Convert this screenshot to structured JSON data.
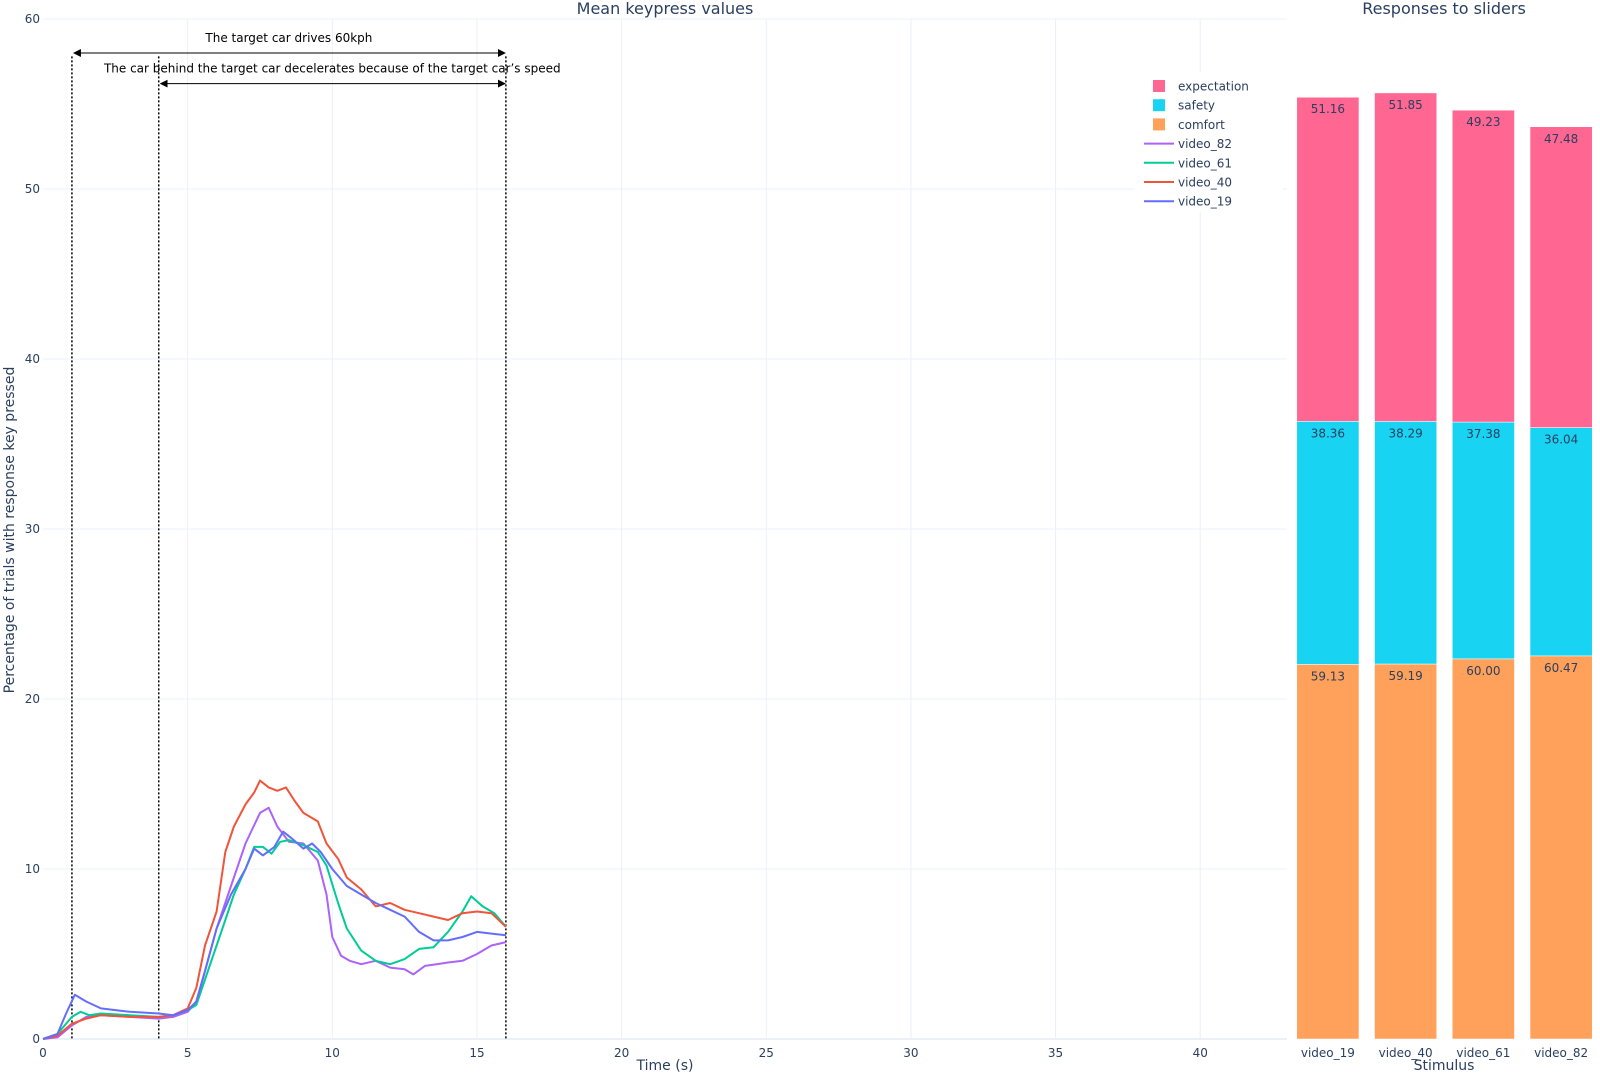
{
  "chart_data": [
    {
      "type": "line",
      "title": "Mean keypress values",
      "xlabel": "Time (s)",
      "ylabel": "Percentage of trials with response key pressed",
      "xlim": [
        0,
        43
      ],
      "ylim": [
        0,
        60
      ],
      "x_ticks": [
        "0",
        "5",
        "10",
        "15",
        "20",
        "25",
        "30",
        "35",
        "40"
      ],
      "y_ticks": [
        "0",
        "10",
        "20",
        "30",
        "40",
        "50",
        "60"
      ],
      "grid": true,
      "series": [
        {
          "name": "video_82",
          "color": "#ab63fa",
          "points": [
            [
              0,
              0
            ],
            [
              0.5,
              0.1
            ],
            [
              1,
              0.8
            ],
            [
              1.5,
              1.3
            ],
            [
              2,
              1.4
            ],
            [
              3,
              1.3
            ],
            [
              4,
              1.2
            ],
            [
              4.5,
              1.3
            ],
            [
              5,
              1.6
            ],
            [
              5.3,
              2.2
            ],
            [
              5.6,
              4
            ],
            [
              6,
              6.5
            ],
            [
              6.5,
              9
            ],
            [
              7,
              11.5
            ],
            [
              7.5,
              13.3
            ],
            [
              7.8,
              13.6
            ],
            [
              8.1,
              12.5
            ],
            [
              8.5,
              11.6
            ],
            [
              9,
              11.5
            ],
            [
              9.5,
              10.5
            ],
            [
              9.8,
              8.5
            ],
            [
              10,
              6
            ],
            [
              10.3,
              4.9
            ],
            [
              10.6,
              4.6
            ],
            [
              11,
              4.4
            ],
            [
              11.5,
              4.6
            ],
            [
              12,
              4.2
            ],
            [
              12.5,
              4.1
            ],
            [
              12.8,
              3.8
            ],
            [
              13.2,
              4.3
            ],
            [
              13.6,
              4.4
            ],
            [
              14,
              4.5
            ],
            [
              14.5,
              4.6
            ],
            [
              15,
              5.0
            ],
            [
              15.5,
              5.5
            ],
            [
              16,
              5.7
            ]
          ]
        },
        {
          "name": "video_61",
          "color": "#00cc96",
          "points": [
            [
              0,
              0
            ],
            [
              0.5,
              0.3
            ],
            [
              1,
              1.3
            ],
            [
              1.3,
              1.6
            ],
            [
              1.6,
              1.4
            ],
            [
              2,
              1.5
            ],
            [
              3,
              1.4
            ],
            [
              4,
              1.3
            ],
            [
              4.5,
              1.4
            ],
            [
              5,
              1.7
            ],
            [
              5.3,
              2.0
            ],
            [
              5.6,
              3.5
            ],
            [
              6,
              5.5
            ],
            [
              6.3,
              7
            ],
            [
              6.6,
              8.5
            ],
            [
              7,
              10
            ],
            [
              7.3,
              11.3
            ],
            [
              7.6,
              11.3
            ],
            [
              7.9,
              10.9
            ],
            [
              8.2,
              11.6
            ],
            [
              8.5,
              11.7
            ],
            [
              9,
              11.4
            ],
            [
              9.5,
              11
            ],
            [
              9.8,
              10.2
            ],
            [
              10.2,
              8
            ],
            [
              10.5,
              6.5
            ],
            [
              11,
              5.2
            ],
            [
              11.5,
              4.6
            ],
            [
              12,
              4.4
            ],
            [
              12.5,
              4.7
            ],
            [
              13,
              5.3
            ],
            [
              13.5,
              5.4
            ],
            [
              14,
              6.3
            ],
            [
              14.5,
              7.5
            ],
            [
              14.8,
              8.4
            ],
            [
              15.2,
              7.8
            ],
            [
              15.6,
              7.4
            ],
            [
              16,
              6.6
            ]
          ]
        },
        {
          "name": "video_40",
          "color": "#ef553b",
          "points": [
            [
              0,
              0
            ],
            [
              0.5,
              0.2
            ],
            [
              1,
              0.9
            ],
            [
              1.5,
              1.2
            ],
            [
              2,
              1.4
            ],
            [
              3,
              1.3
            ],
            [
              4,
              1.3
            ],
            [
              4.5,
              1.4
            ],
            [
              5,
              1.8
            ],
            [
              5.3,
              3
            ],
            [
              5.6,
              5.5
            ],
            [
              6,
              7.5
            ],
            [
              6.3,
              11
            ],
            [
              6.6,
              12.5
            ],
            [
              7,
              13.8
            ],
            [
              7.3,
              14.5
            ],
            [
              7.5,
              15.2
            ],
            [
              7.8,
              14.8
            ],
            [
              8.1,
              14.6
            ],
            [
              8.4,
              14.8
            ],
            [
              8.7,
              14.0
            ],
            [
              9,
              13.3
            ],
            [
              9.5,
              12.8
            ],
            [
              9.8,
              11.5
            ],
            [
              10.2,
              10.6
            ],
            [
              10.5,
              9.5
            ],
            [
              11,
              8.8
            ],
            [
              11.5,
              7.8
            ],
            [
              12,
              8.0
            ],
            [
              12.5,
              7.6
            ],
            [
              13,
              7.4
            ],
            [
              13.5,
              7.2
            ],
            [
              14,
              7.0
            ],
            [
              14.5,
              7.4
            ],
            [
              15,
              7.5
            ],
            [
              15.5,
              7.4
            ],
            [
              16,
              6.6
            ]
          ]
        },
        {
          "name": "video_19",
          "color": "#636efa",
          "points": [
            [
              0,
              0
            ],
            [
              0.5,
              0.3
            ],
            [
              0.8,
              1.5
            ],
            [
              1.1,
              2.6
            ],
            [
              1.5,
              2.2
            ],
            [
              2,
              1.8
            ],
            [
              3,
              1.6
            ],
            [
              4,
              1.5
            ],
            [
              4.5,
              1.4
            ],
            [
              5,
              1.7
            ],
            [
              5.3,
              2.2
            ],
            [
              5.6,
              4
            ],
            [
              6,
              6.5
            ],
            [
              6.5,
              8.5
            ],
            [
              7,
              10
            ],
            [
              7.3,
              11.2
            ],
            [
              7.6,
              10.8
            ],
            [
              8,
              11.3
            ],
            [
              8.3,
              12.2
            ],
            [
              8.6,
              11.8
            ],
            [
              9,
              11.2
            ],
            [
              9.3,
              11.5
            ],
            [
              9.6,
              11.0
            ],
            [
              10,
              10
            ],
            [
              10.5,
              9
            ],
            [
              11,
              8.5
            ],
            [
              11.5,
              8.0
            ],
            [
              12,
              7.6
            ],
            [
              12.5,
              7.2
            ],
            [
              13,
              6.3
            ],
            [
              13.5,
              5.8
            ],
            [
              14,
              5.8
            ],
            [
              14.5,
              6.0
            ],
            [
              15,
              6.3
            ],
            [
              15.5,
              6.2
            ],
            [
              16,
              6.1
            ]
          ]
        }
      ],
      "annotations": [
        {
          "text": "The target car drives 60kph",
          "x_start": 1,
          "x_end": 16,
          "y": 58
        },
        {
          "text": "The car behind the target car decelerates because of the target car’s speed",
          "x_start": 4,
          "x_end": 16,
          "y": 56.2
        }
      ],
      "vertical_lines": [
        1,
        4,
        16
      ]
    },
    {
      "type": "bar",
      "stacked": true,
      "title": "Responses to sliders",
      "xlabel": "Stimulus",
      "categories": [
        "video_19",
        "video_40",
        "video_61",
        "video_82"
      ],
      "series": [
        {
          "name": "comfort",
          "color": "#ffa15a",
          "values": [
            59.13,
            59.19,
            60.0,
            60.47
          ],
          "labels": [
            "59.13",
            "59.19",
            "60.00",
            "60.47"
          ]
        },
        {
          "name": "safety",
          "color": "#19d3f3",
          "values": [
            38.36,
            38.29,
            37.38,
            36.04
          ],
          "labels": [
            "38.36",
            "38.29",
            "37.38",
            "36.04"
          ]
        },
        {
          "name": "expectation",
          "color": "#ff6692",
          "values": [
            51.16,
            51.85,
            49.23,
            47.48
          ],
          "labels": [
            "51.16",
            "51.85",
            "49.23",
            "47.48"
          ]
        }
      ],
      "ylim": [
        0,
        161
      ]
    }
  ],
  "legend": {
    "placement": "top-right",
    "items": [
      {
        "label": "expectation",
        "kind": "square",
        "color": "#ff6692"
      },
      {
        "label": "safety",
        "kind": "square",
        "color": "#19d3f3"
      },
      {
        "label": "comfort",
        "kind": "square",
        "color": "#ffa15a"
      },
      {
        "label": "video_82",
        "kind": "line",
        "color": "#ab63fa"
      },
      {
        "label": "video_61",
        "kind": "line",
        "color": "#00cc96"
      },
      {
        "label": "video_40",
        "kind": "line",
        "color": "#ef553b"
      },
      {
        "label": "video_19",
        "kind": "line",
        "color": "#636efa"
      }
    ]
  }
}
